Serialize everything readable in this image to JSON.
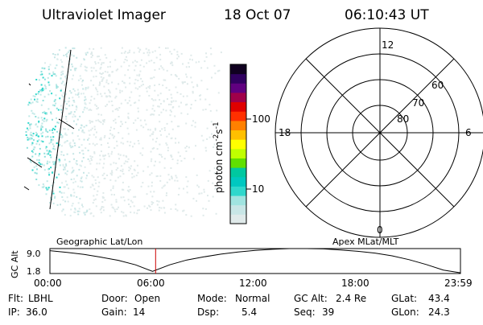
{
  "header": {
    "instrument": "Ultraviolet Imager",
    "date": "18 Oct 07",
    "time": "06:10:43 UT"
  },
  "colorbar": {
    "unit_label": "photon cm",
    "unit_exp1": "-2",
    "unit_mid": "s",
    "unit_exp2": "-1",
    "tick_labels": [
      "100",
      "10"
    ],
    "colors": [
      "#e0eaea",
      "#c8e6e6",
      "#a0e4e0",
      "#30d8cc",
      "#00c8c0",
      "#00c8a0",
      "#60e000",
      "#c0ff00",
      "#ffff00",
      "#ffc000",
      "#ff8000",
      "#ff3000",
      "#e00000",
      "#a0004a",
      "#600080",
      "#300060",
      "#100020"
    ]
  },
  "image_panel": {
    "left_label": "Geographic Lat/Lon"
  },
  "polar_panel": {
    "mlt_labels": {
      "top": "12",
      "bottom": "0",
      "left": "18",
      "right": "6"
    },
    "mlat_labels": [
      "60",
      "70",
      "80"
    ],
    "caption": "Apex MLat/MLT"
  },
  "chart_data": {
    "type": "line",
    "title": "",
    "ylabel": "GC Alt",
    "y_tick_labels": [
      "9.0",
      "1.8"
    ],
    "ylim": [
      1.8,
      9.0
    ],
    "x_tick_labels": [
      "00:00",
      "06:00",
      "12:00",
      "18:00",
      "23:59"
    ],
    "x_hours": [
      0,
      1,
      2,
      3,
      4,
      5,
      6,
      7,
      8,
      9,
      10,
      11,
      12,
      13,
      14,
      15,
      16,
      17,
      18,
      19,
      20,
      21,
      22,
      23,
      24
    ],
    "series": [
      {
        "values": [
          8.4,
          7.9,
          7.3,
          6.5,
          5.6,
          4.3,
          2.4,
          4.3,
          5.7,
          6.6,
          7.4,
          8.0,
          8.5,
          8.8,
          9.0,
          9.0,
          8.9,
          8.6,
          8.2,
          7.7,
          6.9,
          5.8,
          4.4,
          2.8,
          2.0
        ]
      }
    ],
    "current_time_hours": 6.18,
    "current_marker_color": "#cc0000"
  },
  "info": {
    "row1": [
      {
        "key": "Flt:",
        "value": "LBHL"
      },
      {
        "key": "Door:",
        "value": "Open"
      },
      {
        "key": "Mode:",
        "value": "Normal"
      },
      {
        "key": "GC Alt:",
        "value": "2.4 Re"
      },
      {
        "key": "GLat:",
        "value": "43.4"
      }
    ],
    "row2": [
      {
        "key": "IP:",
        "value": "36.0"
      },
      {
        "key": "Gain:",
        "value": "14"
      },
      {
        "key": "Dsp:",
        "value": "5.4"
      },
      {
        "key": "Seq:",
        "value": "39"
      },
      {
        "key": "GLon:",
        "value": "24.3"
      }
    ]
  }
}
